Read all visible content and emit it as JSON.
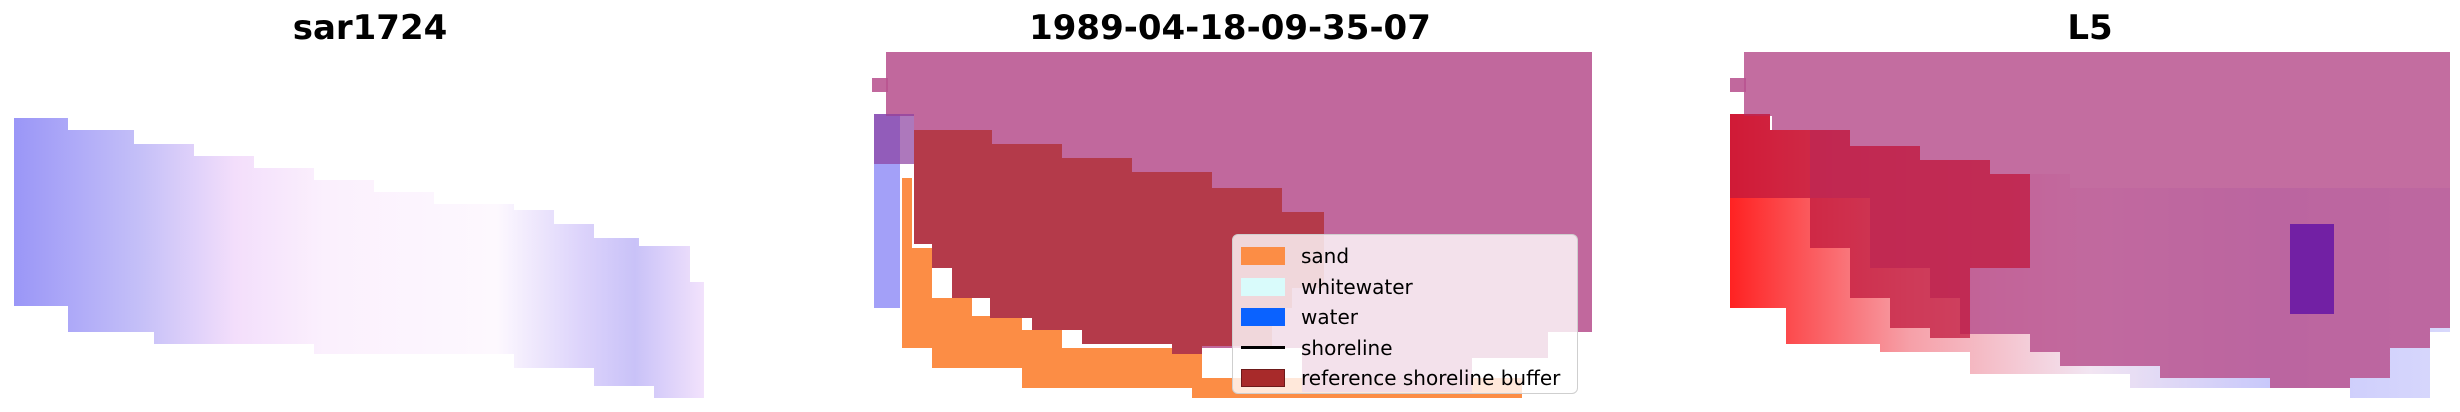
{
  "panels": [
    {
      "title": "sar1724"
    },
    {
      "title": "1989-04-18-09-35-07"
    },
    {
      "title": "L5"
    }
  ],
  "legend": {
    "items": [
      {
        "label": "sand",
        "color": "#fc8d45",
        "kind": "patch"
      },
      {
        "label": "whitewater",
        "color": "#d9fbfb",
        "kind": "patch"
      },
      {
        "label": "water",
        "color": "#0a62ff",
        "kind": "patch"
      },
      {
        "label": "shoreline",
        "color": "#000000",
        "kind": "line"
      },
      {
        "label": "reference shoreline buffer",
        "color": "#a82a2a",
        "kind": "patch"
      }
    ]
  },
  "colors": {
    "buffer_overlay": "#b8538f",
    "buffer_dark": "#b43a4a",
    "sand": "#fc8d45",
    "water_tint": "#a3a0f8"
  }
}
